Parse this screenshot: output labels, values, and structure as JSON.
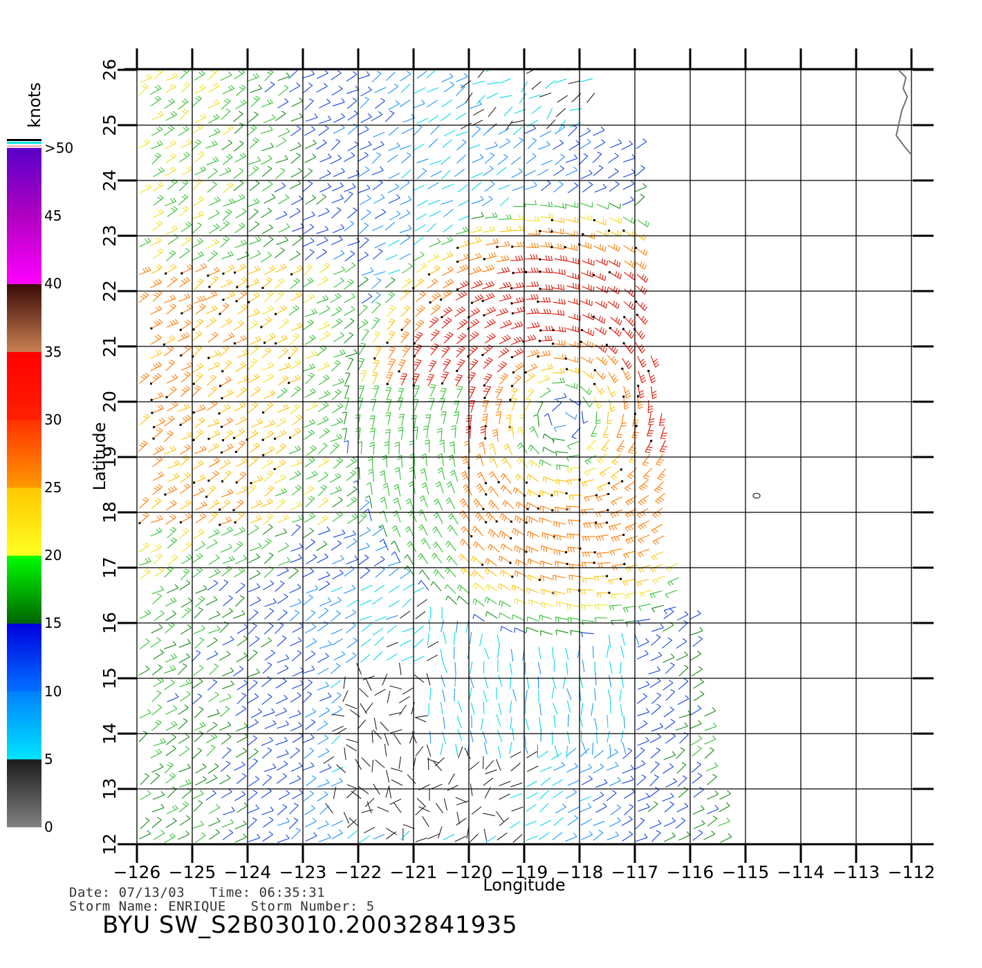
{
  "map": {
    "lon_ticks": [
      "-126",
      "-125",
      "-124",
      "-123",
      "-122",
      "-121",
      "-120",
      "-119",
      "-118",
      "-117",
      "-116",
      "-115",
      "-114",
      "-113",
      "-112"
    ],
    "lat_ticks": [
      "12",
      "13",
      "14",
      "15",
      "16",
      "17",
      "18",
      "19",
      "20",
      "21",
      "22",
      "23",
      "24",
      "25",
      "26"
    ],
    "xlabel": "Longitude",
    "ylabel": "Latitude",
    "lon_range": [
      -126,
      -112
    ],
    "lat_range": [
      12,
      26
    ],
    "grid": true,
    "storm_center": {
      "lon": -118.3,
      "lat": 19.7
    },
    "land_feature": "coastline (Baja California tip, top-right)",
    "island_feature": "small island near -114.8, 18.3"
  },
  "colorbar": {
    "units": "knots",
    "labels": [
      "0",
      "5",
      "10",
      "15",
      "20",
      "25",
      "30",
      "35",
      "40",
      "45",
      ">50"
    ],
    "bands": [
      {
        "from": 0,
        "to": 5,
        "colors": [
          "#808080",
          "#1a1a1a"
        ]
      },
      {
        "from": 5,
        "to": 10,
        "colors": [
          "#00e5ff",
          "#0080ff"
        ]
      },
      {
        "from": 10,
        "to": 15,
        "colors": [
          "#0070ff",
          "#0000e0"
        ]
      },
      {
        "from": 15,
        "to": 20,
        "colors": [
          "#006400",
          "#00ff00"
        ]
      },
      {
        "from": 20,
        "to": 25,
        "colors": [
          "#ffff20",
          "#ffc800"
        ]
      },
      {
        "from": 25,
        "to": 30,
        "colors": [
          "#ff9a00",
          "#ff3000"
        ]
      },
      {
        "from": 30,
        "to": 35,
        "colors": [
          "#ff2000",
          "#ff0000"
        ]
      },
      {
        "from": 35,
        "to": 40,
        "colors": [
          "#c88050",
          "#3a0a08"
        ]
      },
      {
        "from": 40,
        "to": 45,
        "colors": [
          "#ff00ff",
          "#b000c0"
        ]
      },
      {
        "from": 45,
        "to": 50,
        "colors": [
          "#b000c0",
          "#5a00c8"
        ]
      }
    ]
  },
  "info": {
    "date_line": "Date: 07/13/03   Time: 06:35:31",
    "storm_line": "Storm Name: ENRIQUE   Storm Number: 5",
    "title": "BYU SW_S2B03010.20032841935"
  }
}
